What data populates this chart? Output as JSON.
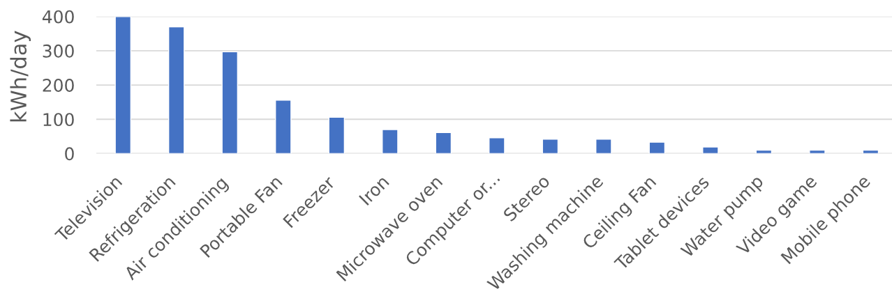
{
  "chart_data": {
    "type": "bar",
    "ylabel": "kWh/day",
    "categories": [
      "Television",
      "Refrigeration",
      "Air conditioning",
      "Portable Fan",
      "Freezer",
      "Iron",
      "Microwave oven",
      "Computer or...",
      "Stereo",
      "Washing machine",
      "Ceiling Fan",
      "Tablet devices",
      "Water pump",
      "Video game",
      "Mobile phone"
    ],
    "values": [
      400,
      370,
      297,
      156,
      106,
      70,
      61,
      46,
      42,
      42,
      33,
      19,
      10,
      10,
      10
    ],
    "color": "#4472c4",
    "ylim": [
      0,
      400
    ],
    "yticks": [
      0,
      100,
      200,
      300,
      400
    ],
    "grid": "y"
  }
}
